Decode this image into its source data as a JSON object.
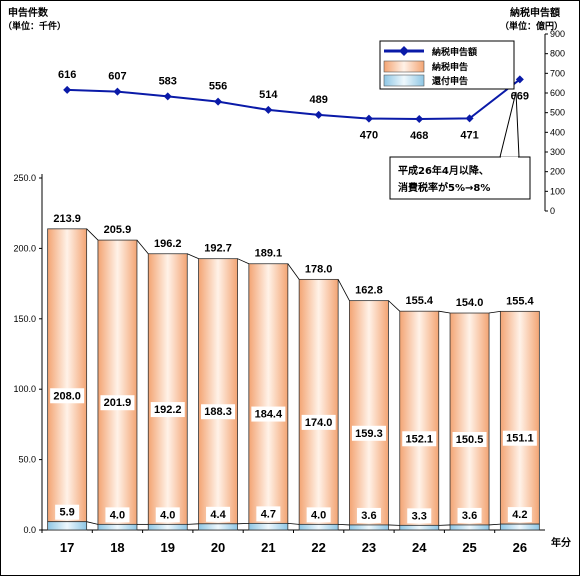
{
  "chart_data": {
    "type": "bar",
    "left_axis_title": "申告件数",
    "left_axis_unit": "（単位：千件）",
    "right_axis_title": "納税申告額",
    "right_axis_unit": "（単位：億円）",
    "x_unit": "年分",
    "categories": [
      "17",
      "18",
      "19",
      "20",
      "21",
      "22",
      "23",
      "24",
      "25",
      "26"
    ],
    "left_ticks": [
      "0.0",
      "50.0",
      "100.0",
      "150.0",
      "200.0",
      "250.0"
    ],
    "left_ylim": [
      0,
      250
    ],
    "right_ticks": [
      "0",
      "100",
      "200",
      "300",
      "400",
      "500",
      "600",
      "700",
      "800",
      "900"
    ],
    "right_ylim": [
      0,
      900
    ],
    "series": [
      {
        "name": "納税申告",
        "values": [
          208.0,
          201.9,
          192.2,
          188.3,
          184.4,
          174.0,
          159.3,
          152.1,
          150.5,
          151.1
        ],
        "labels": [
          "208.0",
          "201.9",
          "192.2",
          "188.3",
          "184.4",
          "174.0",
          "159.3",
          "152.1",
          "150.5",
          "151.1"
        ],
        "color": "#f6b68c"
      },
      {
        "name": "還付申告",
        "values": [
          5.9,
          4.0,
          4.0,
          4.4,
          4.7,
          4.0,
          3.6,
          3.3,
          3.6,
          4.2
        ],
        "labels": [
          "5.9",
          "4.0",
          "4.0",
          "4.4",
          "4.7",
          "4.0",
          "3.6",
          "3.3",
          "3.6",
          "4.2"
        ],
        "color": "#a9d3ea"
      },
      {
        "name": "納税申告額",
        "values": [
          616,
          607,
          583,
          556,
          514,
          489,
          470,
          468,
          471,
          669
        ],
        "labels": [
          "616",
          "607",
          "583",
          "556",
          "514",
          "489",
          "470",
          "468",
          "471",
          "669"
        ],
        "color": "#0a1aa8"
      }
    ],
    "totals": [
      213.9,
      205.9,
      196.2,
      192.7,
      189.1,
      178.0,
      162.8,
      155.4,
      154.0,
      155.4
    ],
    "total_labels": [
      "213.9",
      "205.9",
      "196.2",
      "192.7",
      "189.1",
      "178.0",
      "162.8",
      "155.4",
      "154.0",
      "155.4"
    ],
    "legend": {
      "placement": "top-right",
      "items": [
        {
          "label": "納税申告額",
          "kind": "line",
          "color": "#0a1aa8"
        },
        {
          "label": "納税申告",
          "kind": "box",
          "color": "#f6b68c"
        },
        {
          "label": "還付申告",
          "kind": "box",
          "color": "#a9d3ea"
        }
      ]
    },
    "annotation": {
      "line1": "平成26年4月以降、",
      "line2": "消費税率が5%→8%"
    }
  }
}
